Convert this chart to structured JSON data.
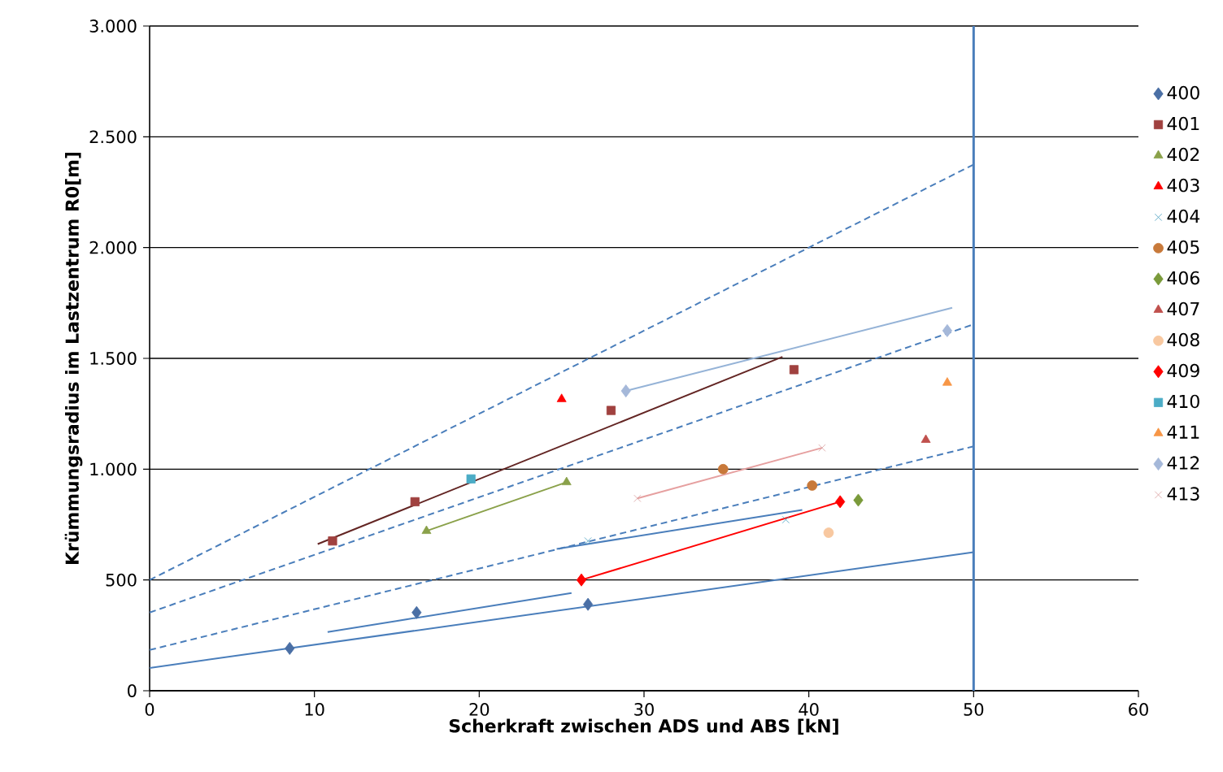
{
  "chart_data": {
    "type": "scatter",
    "xlabel": "Scherkraft zwischen  ADS und ABS [kN]",
    "ylabel": "Krümmungsradius im Lastzentrum R0[m]",
    "xlim": [
      0,
      60
    ],
    "xticks": [
      0,
      10,
      20,
      30,
      40,
      50,
      60
    ],
    "ylim": [
      0,
      3000
    ],
    "yticks": [
      0,
      500,
      {
        "value": 1000,
        "label": "1.000"
      },
      {
        "value": 1500,
        "label": "1.500"
      },
      {
        "value": 2000,
        "label": "2.000"
      },
      {
        "value": 2500,
        "label": "2.500"
      },
      {
        "value": 3000,
        "label": "3.000"
      }
    ],
    "grid": "y",
    "legend": "right",
    "ref_lines": [
      {
        "axis": "x",
        "value": 50,
        "color": "#4a7ebb"
      }
    ],
    "series": [
      {
        "name": "400",
        "color": "#4a6fa5",
        "marker": "diamond",
        "x": [
          8.5,
          16.2,
          26.6
        ],
        "values": [
          191,
          353,
          390
        ]
      },
      {
        "name": "401",
        "color": "#a0413f",
        "marker": "square",
        "x": [
          11.1,
          16.1,
          28.0,
          39.1
        ],
        "values": [
          676,
          853,
          1265,
          1449
        ]
      },
      {
        "name": "402",
        "color": "#8aa14a",
        "marker": "triangle",
        "x": [
          16.8,
          25.3
        ],
        "values": [
          721,
          941
        ]
      },
      {
        "name": "403",
        "color": "#ff0000",
        "marker": "triangle",
        "x": [
          25.0
        ],
        "values": [
          1316
        ]
      },
      {
        "name": "404",
        "color": "#4aa0c0",
        "marker": "cross",
        "x": [
          26.6,
          38.6
        ],
        "values": [
          676,
          772
        ]
      },
      {
        "name": "405",
        "color": "#c8793a",
        "marker": "circle",
        "x": [
          34.8,
          40.2
        ],
        "values": [
          1000,
          926
        ]
      },
      {
        "name": "406",
        "color": "#7a9a3a",
        "marker": "diamond",
        "x": [
          43.0
        ],
        "values": [
          860
        ]
      },
      {
        "name": "407",
        "color": "#c0504d",
        "marker": "triangle",
        "x": [
          47.1
        ],
        "values": [
          1132
        ]
      },
      {
        "name": "408",
        "color": "#f8c8a0",
        "marker": "circle",
        "x": [
          41.2
        ],
        "values": [
          713
        ]
      },
      {
        "name": "409",
        "color": "#ff0000",
        "marker": "diamond",
        "x": [
          26.2,
          41.9
        ],
        "values": [
          500,
          853
        ]
      },
      {
        "name": "410",
        "color": "#4bacc6",
        "marker": "square",
        "x": [
          19.5
        ],
        "values": [
          956
        ]
      },
      {
        "name": "411",
        "color": "#f79646",
        "marker": "triangle",
        "x": [
          48.4
        ],
        "values": [
          1390
        ]
      },
      {
        "name": "412",
        "color": "#a5b8d9",
        "marker": "diamond",
        "x": [
          28.9,
          48.4
        ],
        "values": [
          1353,
          1625
        ]
      },
      {
        "name": "413",
        "color": "#d9a0a0",
        "marker": "cross",
        "x": [
          29.6,
          40.8
        ],
        "values": [
          868,
          1096
        ]
      },
      {
        "type": "line",
        "color": "#4a7ebb",
        "marker": "none",
        "line_style": "solid",
        "x": [
          0,
          50
        ],
        "values": [
          103,
          625
        ]
      },
      {
        "type": "line",
        "color": "#4a7ebb",
        "marker": "none",
        "line_style": "solid",
        "x": [
          10.8,
          25.6
        ],
        "values": [
          265,
          441
        ]
      },
      {
        "type": "line",
        "color": "#4a7ebb",
        "marker": "none",
        "line_style": "solid",
        "x": [
          24.7,
          39.6
        ],
        "values": [
          640,
          816
        ]
      },
      {
        "type": "line",
        "color": "#ff0000",
        "marker": "none",
        "line_style": "solid",
        "x": [
          26.2,
          41.9
        ],
        "values": [
          500,
          853
        ]
      },
      {
        "type": "line",
        "color": "#8aa14a",
        "marker": "none",
        "line_style": "solid",
        "x": [
          16.8,
          25.3
        ],
        "values": [
          721,
          941
        ]
      },
      {
        "type": "line",
        "color": "#632523",
        "marker": "none",
        "line_style": "solid",
        "x": [
          10.2,
          38.4
        ],
        "values": [
          662,
          1507
        ]
      },
      {
        "type": "line",
        "color": "#95b3d7",
        "marker": "none",
        "line_style": "solid",
        "x": [
          28.9,
          48.7
        ],
        "values": [
          1353,
          1728
        ]
      },
      {
        "type": "line",
        "color": "#e6a0a0",
        "marker": "none",
        "line_style": "solid",
        "x": [
          29.6,
          40.8
        ],
        "values": [
          868,
          1096
        ]
      },
      {
        "type": "line",
        "color": "#4a7ebb",
        "marker": "none",
        "line_style": "dashed",
        "x": [
          0,
          50
        ],
        "values": [
          500,
          2375
        ]
      },
      {
        "type": "line",
        "color": "#4a7ebb",
        "marker": "none",
        "line_style": "dashed",
        "x": [
          0,
          50
        ],
        "values": [
          353,
          1654
        ]
      },
      {
        "type": "line",
        "color": "#4a7ebb",
        "marker": "none",
        "line_style": "dashed",
        "x": [
          0,
          50
        ],
        "values": [
          184,
          1103
        ]
      }
    ]
  }
}
